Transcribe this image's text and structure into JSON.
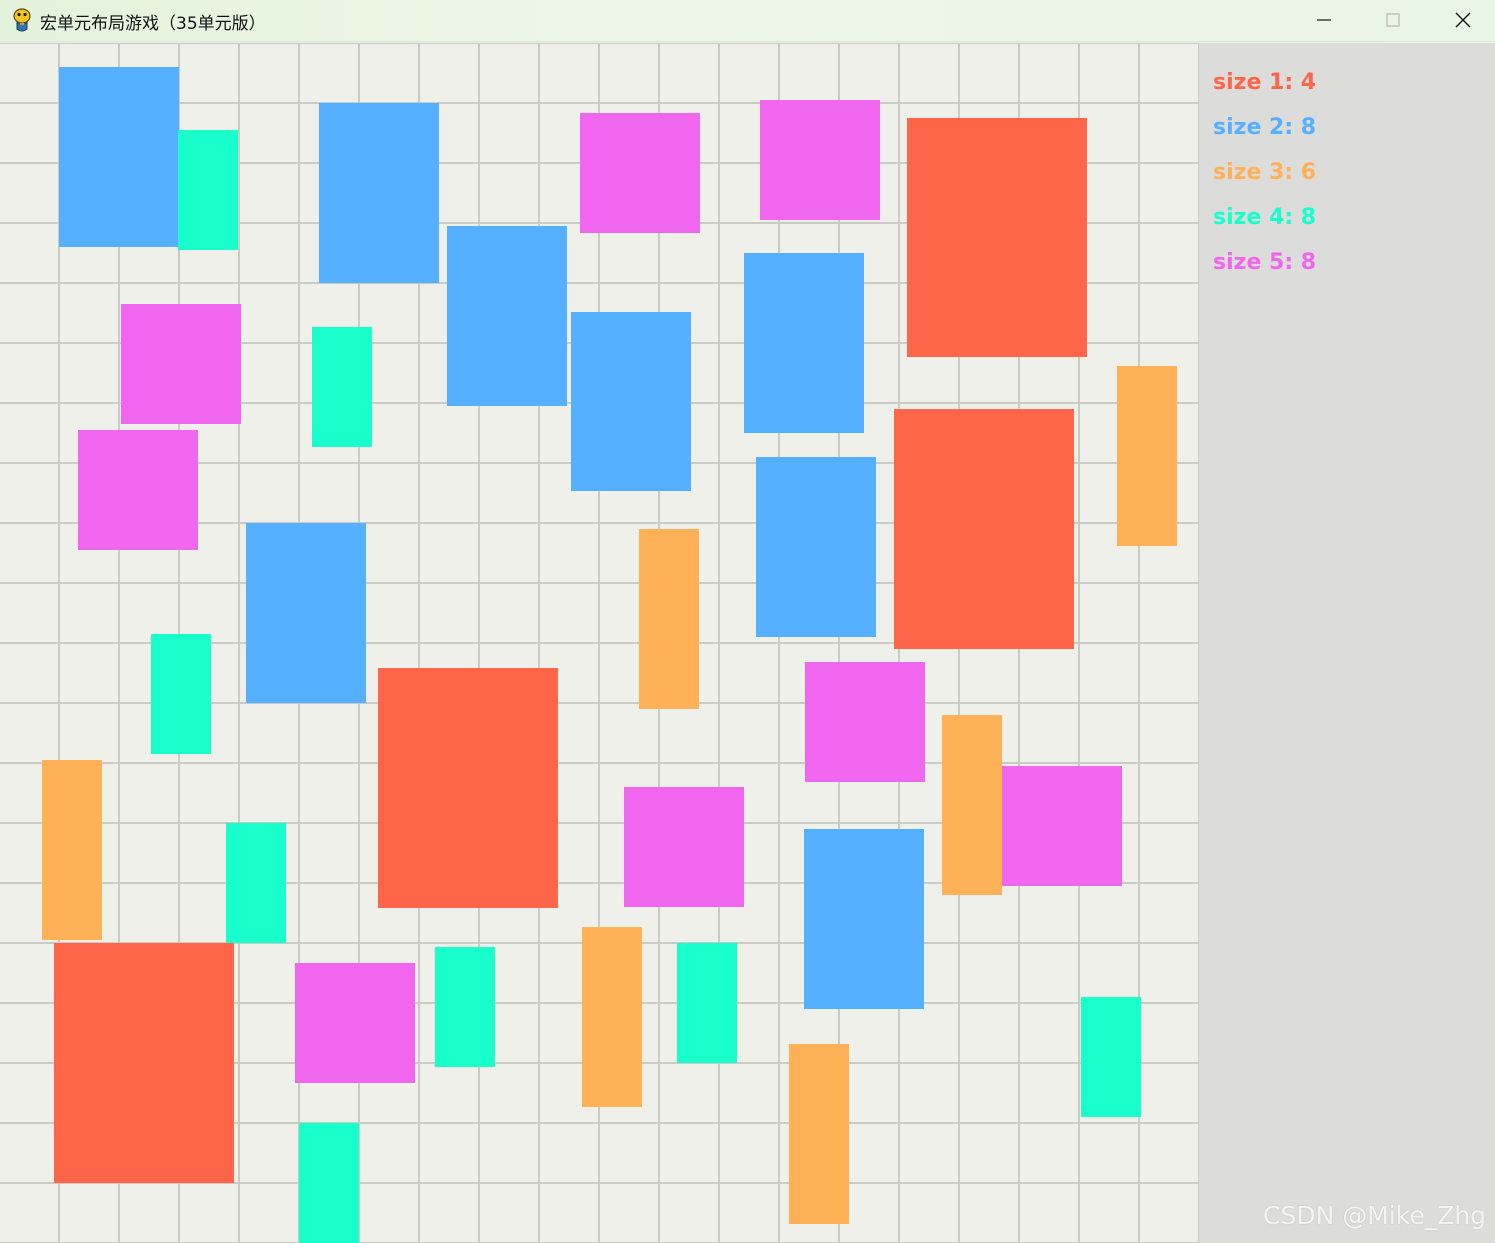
{
  "window": {
    "title": "宏单元布局游戏（35单元版）",
    "icon": "pygame-snake-icon"
  },
  "controls": {
    "minimize_icon": "minimize-icon",
    "maximize_icon": "maximize-icon",
    "close_icon": "close-icon"
  },
  "colors": {
    "size1": "#ff6649",
    "size2": "#55b1ff",
    "size3": "#ffb157",
    "size4": "#19ffcb",
    "size5": "#f066ee",
    "grid_bg": "#f0f0eb",
    "grid_line": "#cbcbc6",
    "panel_bg": "#dcdcda"
  },
  "legend": [
    {
      "label": "size 1: 4",
      "size": 1
    },
    {
      "label": "size 2: 8",
      "size": 2
    },
    {
      "label": "size 3: 6",
      "size": 3
    },
    {
      "label": "size 4: 8",
      "size": 4
    },
    {
      "label": "size 5: 8",
      "size": 5
    }
  ],
  "watermark": "CSDN @Mike_Zhg"
}
